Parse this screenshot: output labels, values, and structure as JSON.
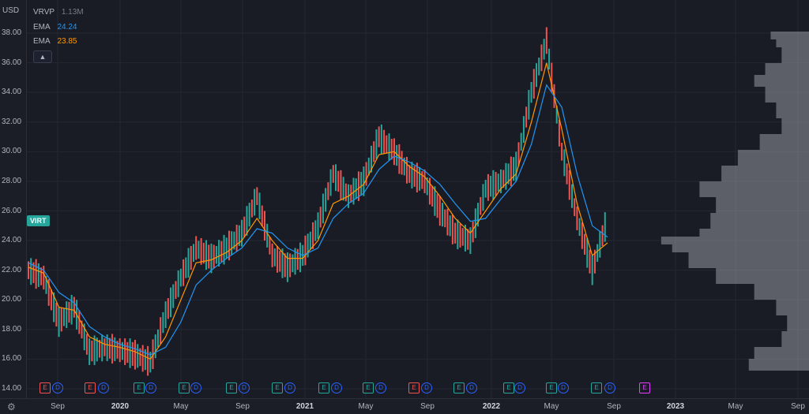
{
  "currency": "USD",
  "y_ticks": [
    "38.00",
    "36.00",
    "34.00",
    "32.00",
    "30.00",
    "28.00",
    "26.00",
    "24.00",
    "22.00",
    "20.00",
    "18.00",
    "16.00",
    "14.00"
  ],
  "x_ticks": [
    {
      "label": "Sep",
      "bold": false
    },
    {
      "label": "2020",
      "bold": true
    },
    {
      "label": "May",
      "bold": false
    },
    {
      "label": "Sep",
      "bold": false
    },
    {
      "label": "2021",
      "bold": true
    },
    {
      "label": "May",
      "bold": false
    },
    {
      "label": "Sep",
      "bold": false
    },
    {
      "label": "2022",
      "bold": true
    },
    {
      "label": "May",
      "bold": false
    },
    {
      "label": "Sep",
      "bold": false
    },
    {
      "label": "2023",
      "bold": true
    },
    {
      "label": "May",
      "bold": false
    },
    {
      "label": "Sep",
      "bold": false
    }
  ],
  "legend": {
    "vrvp": {
      "label": "VRVP",
      "value": "1.13M"
    },
    "ema1": {
      "label": "EMA",
      "value": "24.24",
      "color": "#2196f3"
    },
    "ema2": {
      "label": "EMA",
      "value": "23.85",
      "color": "#ff9800"
    }
  },
  "symbol_tag": "VIRT",
  "colors": {
    "up": "#26a69a",
    "down": "#ef5350",
    "volume_profile": "#b2b5be",
    "earnings_past": "#ef5350",
    "dividend": "#2962ff",
    "earnings_future": "#e040fb",
    "earnings_ok": "#26a69a"
  },
  "events": [
    {
      "type": "E",
      "status": "miss",
      "label": "E"
    },
    {
      "type": "D",
      "label": "D"
    },
    {
      "type": "E",
      "status": "miss",
      "label": "E"
    },
    {
      "type": "D",
      "label": "D"
    },
    {
      "type": "E",
      "status": "beat",
      "label": "E"
    },
    {
      "type": "D",
      "label": "D"
    },
    {
      "type": "E",
      "status": "beat",
      "label": "E"
    },
    {
      "type": "D",
      "label": "D"
    },
    {
      "type": "E",
      "status": "beat",
      "label": "E"
    },
    {
      "type": "D",
      "label": "D"
    },
    {
      "type": "E",
      "status": "beat",
      "label": "E"
    },
    {
      "type": "D",
      "label": "D"
    },
    {
      "type": "E",
      "status": "beat",
      "label": "E"
    },
    {
      "type": "D",
      "label": "D"
    },
    {
      "type": "E",
      "status": "beat",
      "label": "E"
    },
    {
      "type": "D",
      "label": "D"
    },
    {
      "type": "E",
      "status": "miss",
      "label": "E"
    },
    {
      "type": "D",
      "label": "D"
    },
    {
      "type": "E",
      "status": "beat",
      "label": "E"
    },
    {
      "type": "D",
      "label": "D"
    },
    {
      "type": "E",
      "status": "beat",
      "label": "E"
    },
    {
      "type": "D",
      "label": "D"
    },
    {
      "type": "E",
      "status": "beat",
      "label": "E"
    },
    {
      "type": "D",
      "label": "D"
    },
    {
      "type": "E",
      "status": "beat",
      "label": "E"
    },
    {
      "type": "D",
      "label": "D"
    },
    {
      "type": "E",
      "status": "future",
      "label": "E"
    }
  ],
  "chart_data": {
    "type": "line",
    "x": [
      "2019-06",
      "2019-07",
      "2019-08",
      "2019-09",
      "2019-10",
      "2019-11",
      "2019-12",
      "2020-01",
      "2020-02",
      "2020-03",
      "2020-04",
      "2020-05",
      "2020-06",
      "2020-07",
      "2020-08",
      "2020-09",
      "2020-10",
      "2020-11",
      "2020-12",
      "2021-01",
      "2021-02",
      "2021-03",
      "2021-04",
      "2021-05",
      "2021-06",
      "2021-07",
      "2021-08",
      "2021-09",
      "2021-10",
      "2021-11",
      "2021-12",
      "2022-01",
      "2022-02",
      "2022-03",
      "2022-04",
      "2022-05",
      "2022-06",
      "2022-07",
      "2022-08"
    ],
    "series": [
      {
        "values": [
          22.0,
          21.5,
          18.5,
          19.5,
          16.5,
          16.8,
          16.6,
          16.3,
          15.8,
          19.0,
          21.5,
          23.5,
          22.8,
          23.5,
          24.5,
          27.0,
          23.0,
          22.2,
          23.0,
          25.0,
          28.5,
          27.0,
          28.0,
          31.0,
          30.0,
          28.5,
          28.0,
          26.0,
          24.5,
          24.0,
          27.5,
          28.0,
          29.0,
          34.0,
          37.5,
          30.0,
          25.5,
          22.0,
          25.5
        ]
      },
      {
        "name": "EMA",
        "values": [
          22.2,
          21.8,
          19.5,
          19.3,
          17.5,
          17.0,
          16.8,
          16.5,
          16.0,
          17.5,
          20.0,
          22.5,
          22.7,
          23.2,
          24.0,
          25.5,
          24.0,
          22.8,
          22.8,
          24.0,
          26.5,
          27.0,
          27.8,
          29.8,
          30.0,
          29.0,
          28.3,
          27.0,
          25.5,
          24.5,
          26.0,
          27.5,
          28.5,
          32.0,
          36.0,
          31.5,
          26.5,
          23.0,
          23.85
        ]
      },
      {
        "name": "EMA",
        "values": [
          22.5,
          22.0,
          20.5,
          19.8,
          18.2,
          17.5,
          17.0,
          16.7,
          16.3,
          16.8,
          18.5,
          21.0,
          22.0,
          22.8,
          23.5,
          24.8,
          24.5,
          23.5,
          23.0,
          23.5,
          25.5,
          26.5,
          27.2,
          28.8,
          29.7,
          29.3,
          28.7,
          27.8,
          26.5,
          25.3,
          25.5,
          26.8,
          28.0,
          30.5,
          34.5,
          33.0,
          28.5,
          25.0,
          24.24
        ]
      }
    ],
    "ylim": [
      14,
      39
    ],
    "ylabel": "USD"
  }
}
